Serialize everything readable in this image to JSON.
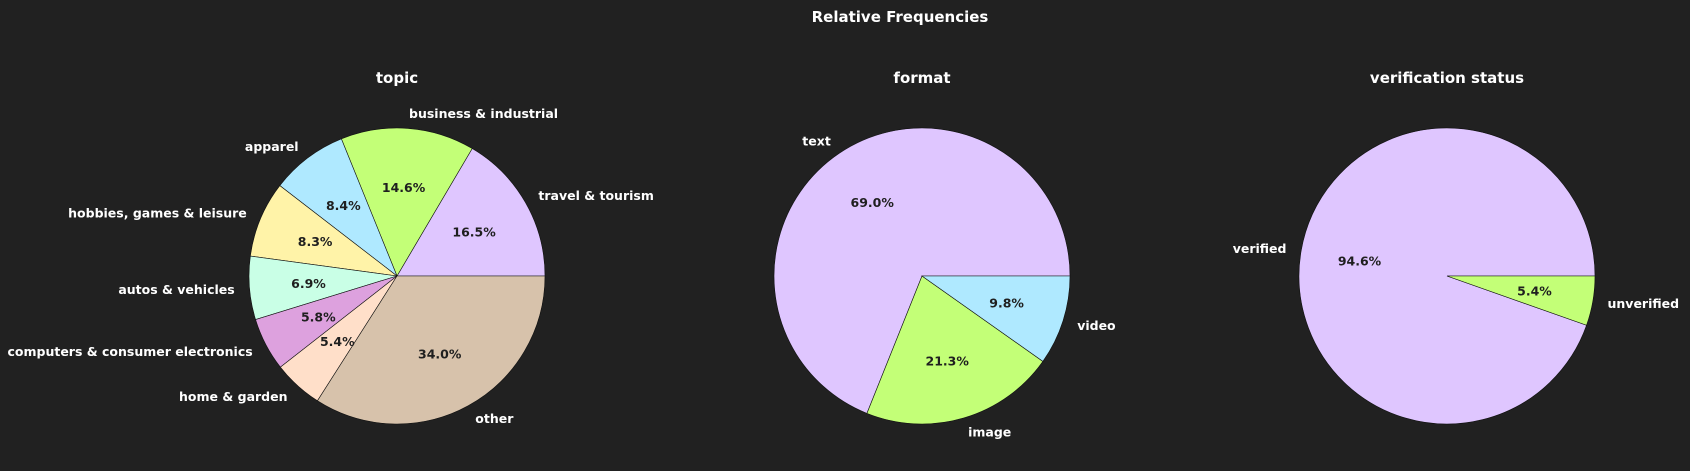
{
  "suptitle": "Relative Frequencies",
  "background": "#212121",
  "chart_data": [
    {
      "type": "pie",
      "title": "topic",
      "start_angle_deg": 0,
      "direction": "counterclockwise",
      "slices": [
        {
          "label": "travel & tourism",
          "value": 16.5,
          "pct_label": "16.5%",
          "color": "#dfc6ff"
        },
        {
          "label": "business & industrial",
          "value": 14.6,
          "pct_label": "14.6%",
          "color": "#c3ff77"
        },
        {
          "label": "apparel",
          "value": 8.4,
          "pct_label": "8.4%",
          "color": "#afe9ff"
        },
        {
          "label": "hobbies, games & leisure",
          "value": 8.3,
          "pct_label": "8.3%",
          "color": "#fff3a8"
        },
        {
          "label": "autos & vehicles",
          "value": 6.9,
          "pct_label": "6.9%",
          "color": "#c9ffe6"
        },
        {
          "label": "computers & consumer electronics",
          "value": 5.8,
          "pct_label": "5.8%",
          "color": "#dda1de"
        },
        {
          "label": "home & garden",
          "value": 5.4,
          "pct_label": "5.4%",
          "color": "#ffdfc9"
        },
        {
          "label": "other",
          "value": 34.0,
          "pct_label": "34.0%",
          "color": "#d7c2ab"
        }
      ]
    },
    {
      "type": "pie",
      "title": "format",
      "start_angle_deg": 0,
      "direction": "counterclockwise",
      "slices": [
        {
          "label": "text",
          "value": 69.0,
          "pct_label": "69.0%",
          "color": "#dfc6ff"
        },
        {
          "label": "image",
          "value": 21.3,
          "pct_label": "21.3%",
          "color": "#c3ff77"
        },
        {
          "label": "video",
          "value": 9.8,
          "pct_label": "9.8%",
          "color": "#afe9ff"
        }
      ]
    },
    {
      "type": "pie",
      "title": "verification status",
      "start_angle_deg": 0,
      "direction": "counterclockwise",
      "slices": [
        {
          "label": "verified",
          "value": 94.6,
          "pct_label": "94.6%",
          "color": "#dfc6ff"
        },
        {
          "label": "unverified",
          "value": 5.4,
          "pct_label": "5.4%",
          "color": "#c3ff77"
        }
      ]
    }
  ]
}
